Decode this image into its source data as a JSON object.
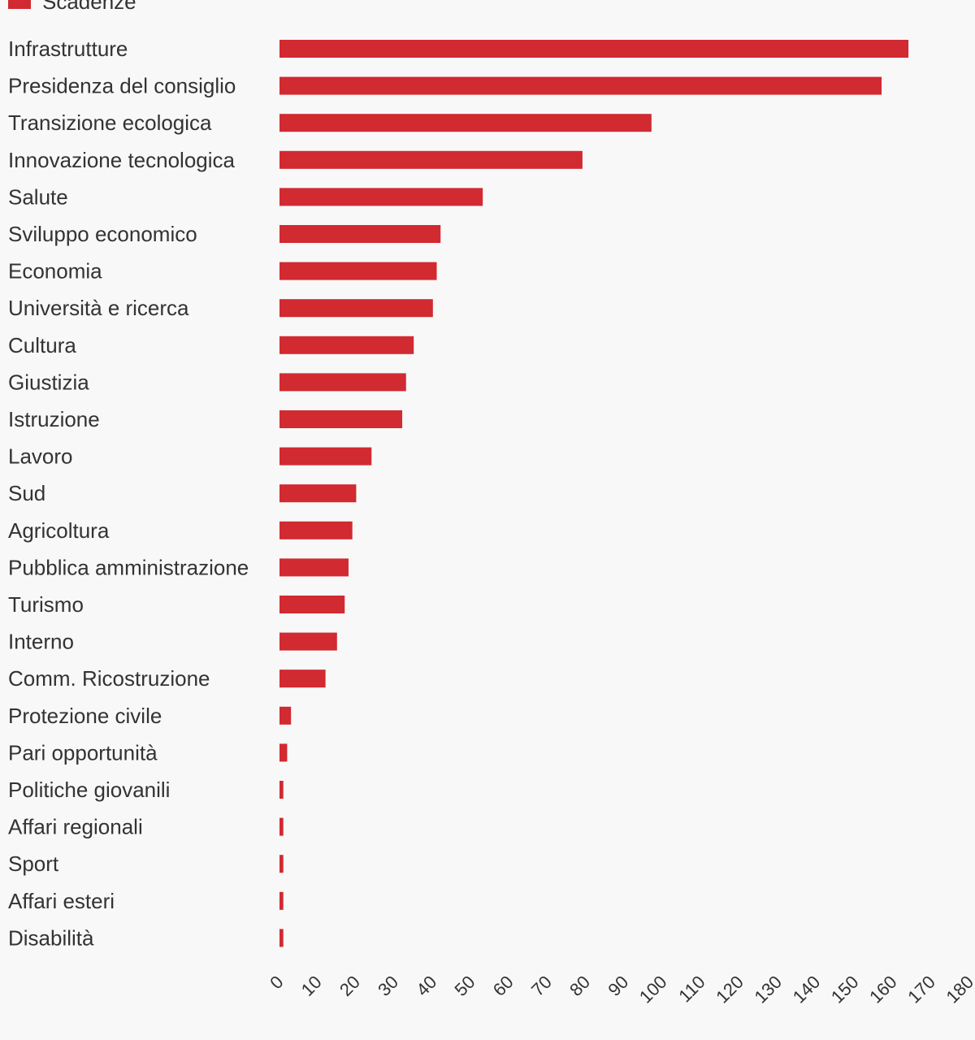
{
  "colors": {
    "bar": "#d12a31",
    "background": "#f8f8f8",
    "text": "#333333"
  },
  "chart_data": {
    "type": "bar",
    "orientation": "horizontal",
    "legend": {
      "position": "top-left",
      "entries": [
        {
          "label": "Scadenze",
          "color": "#d12a31"
        }
      ]
    },
    "categories": [
      "Infrastrutture",
      "Presidenza del consiglio",
      "Transizione ecologica",
      "Innovazione tecnologica",
      "Salute",
      "Sviluppo economico",
      "Economia",
      "Università e ricerca",
      "Cultura",
      "Giustizia",
      "Istruzione",
      "Lavoro",
      "Sud",
      "Agricoltura",
      "Pubblica amministrazione",
      "Turismo",
      "Interno",
      "Comm. Ricostruzione",
      "Protezione civile",
      "Pari opportunità",
      "Politiche giovanili",
      "Affari regionali",
      "Sport",
      "Affari esteri",
      "Disabilità"
    ],
    "series": [
      {
        "name": "Scadenze",
        "values": [
          164,
          157,
          97,
          79,
          53,
          42,
          41,
          40,
          35,
          33,
          32,
          24,
          20,
          19,
          18,
          17,
          15,
          12,
          3,
          2,
          1,
          1,
          1,
          1,
          1
        ]
      }
    ],
    "x_ticks": [
      0,
      10,
      20,
      30,
      40,
      50,
      60,
      70,
      80,
      90,
      100,
      110,
      120,
      130,
      140,
      150,
      160,
      170,
      180
    ],
    "xlim": [
      0,
      180
    ],
    "grid": false
  }
}
